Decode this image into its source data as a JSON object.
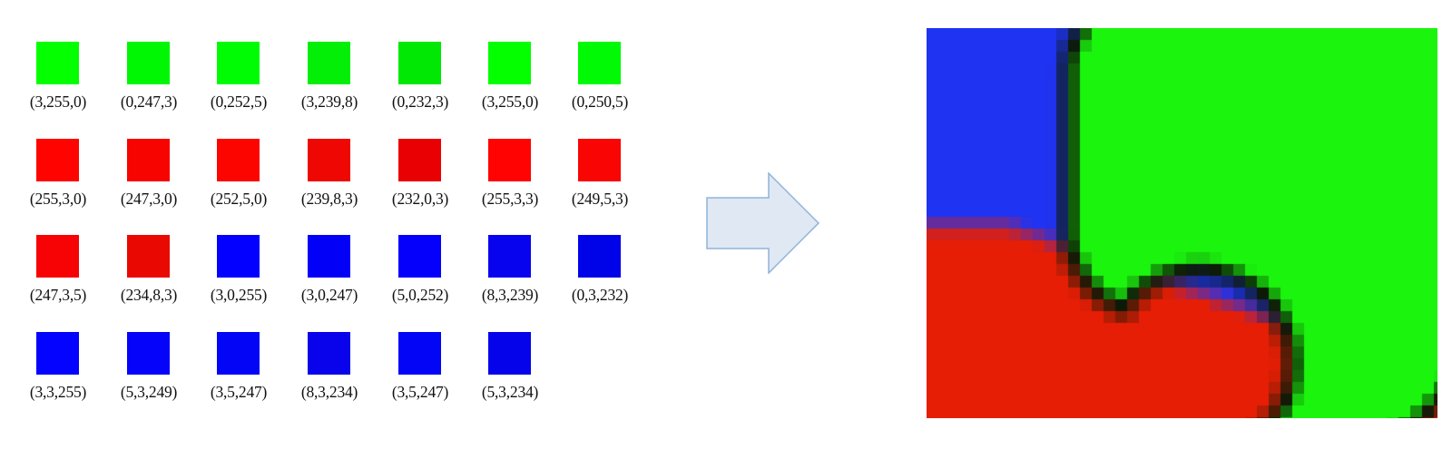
{
  "swatches": [
    {
      "label": "(3,255,0)",
      "color": "#03ff00"
    },
    {
      "label": "(0,247,3)",
      "color": "#00f703"
    },
    {
      "label": "(0,252,5)",
      "color": "#00fc05"
    },
    {
      "label": "(3,239,8)",
      "color": "#03ef08"
    },
    {
      "label": "(0,232,3)",
      "color": "#00e803"
    },
    {
      "label": "(3,255,0)",
      "color": "#03ff00"
    },
    {
      "label": "(0,250,5)",
      "color": "#00fa05"
    },
    {
      "label": "(255,3,0)",
      "color": "#ff0300"
    },
    {
      "label": "(247,3,0)",
      "color": "#f70300"
    },
    {
      "label": "(252,5,0)",
      "color": "#fc0500"
    },
    {
      "label": "(239,8,3)",
      "color": "#ef0803"
    },
    {
      "label": "(232,0,3)",
      "color": "#e80003"
    },
    {
      "label": "(255,3,3)",
      "color": "#ff0303"
    },
    {
      "label": "(249,5,3)",
      "color": "#f90503"
    },
    {
      "label": "(247,3,5)",
      "color": "#f70305"
    },
    {
      "label": "(234,8,3)",
      "color": "#ea0803"
    },
    {
      "label": "(3,0,255)",
      "color": "#0300ff"
    },
    {
      "label": "(3,0,247)",
      "color": "#0300f7"
    },
    {
      "label": "(5,0,252)",
      "color": "#0500fc"
    },
    {
      "label": "(8,3,239)",
      "color": "#0803ef"
    },
    {
      "label": "(0,3,232)",
      "color": "#0003e8"
    },
    {
      "label": "(3,3,255)",
      "color": "#0303ff"
    },
    {
      "label": "(5,3,249)",
      "color": "#0503f9"
    },
    {
      "label": "(3,5,247)",
      "color": "#0305f7"
    },
    {
      "label": "(8,3,234)",
      "color": "#0803ea"
    },
    {
      "label": "(3,5,247)",
      "color": "#0305f7"
    },
    {
      "label": "(5,3,234)",
      "color": "#0503ea"
    }
  ],
  "arrow": {
    "fill": "#dfe8f3",
    "stroke": "#8fb4d9"
  },
  "output_image": {
    "palette": {
      "blue": "#1f33f2",
      "green": "#1bf50e",
      "red": "#e61e05",
      "dark_border": "#0c1a06"
    }
  }
}
